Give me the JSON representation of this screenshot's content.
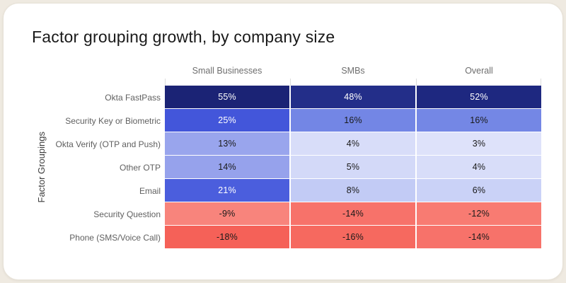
{
  "page": {
    "background_color": "#EFEAE1",
    "card_background_color": "#FFFFFF"
  },
  "chart_data": {
    "type": "heatmap",
    "title": "Factor grouping growth, by company size",
    "xlabel": "",
    "ylabel": "Factor Groupings",
    "unit": "%",
    "legend_position": "none",
    "columns": [
      "Small Businesses",
      "SMBs",
      "Overall"
    ],
    "rows": [
      {
        "label": "Okta FastPass",
        "values": [
          55,
          48,
          52
        ],
        "colors": [
          "#1B2375",
          "#232E89",
          "#1E2880"
        ]
      },
      {
        "label": "Security Key or Biometric",
        "values": [
          25,
          16,
          16
        ],
        "colors": [
          "#4356DA",
          "#7386E5",
          "#7487E5"
        ]
      },
      {
        "label": "Okta Verify (OTP and Push)",
        "values": [
          13,
          4,
          3
        ],
        "colors": [
          "#99A5ED",
          "#D8DDF9",
          "#DEE2FA"
        ]
      },
      {
        "label": "Other OTP",
        "values": [
          14,
          5,
          4
        ],
        "colors": [
          "#96A2EC",
          "#D3D9F8",
          "#D8DDF9"
        ]
      },
      {
        "label": "Email",
        "values": [
          21,
          8,
          6
        ],
        "colors": [
          "#4B5EDD",
          "#C2CBF5",
          "#CAD2F7"
        ]
      },
      {
        "label": "Security Question",
        "values": [
          -9,
          -14,
          -12
        ],
        "colors": [
          "#F8847C",
          "#F7726A",
          "#F87B72"
        ]
      },
      {
        "label": "Phone (SMS/Voice Call)",
        "values": [
          -18,
          -16,
          -14
        ],
        "colors": [
          "#F56158",
          "#F6695F",
          "#F7726A"
        ]
      }
    ],
    "cell_text_dark": "#1A1A1A",
    "cell_text_light": "#FFFFFF",
    "white_text_min_value": 21,
    "accent_positive_dark": "#1B2375",
    "accent_negative": "#F56158",
    "tick_color": "#DCDCDC"
  }
}
